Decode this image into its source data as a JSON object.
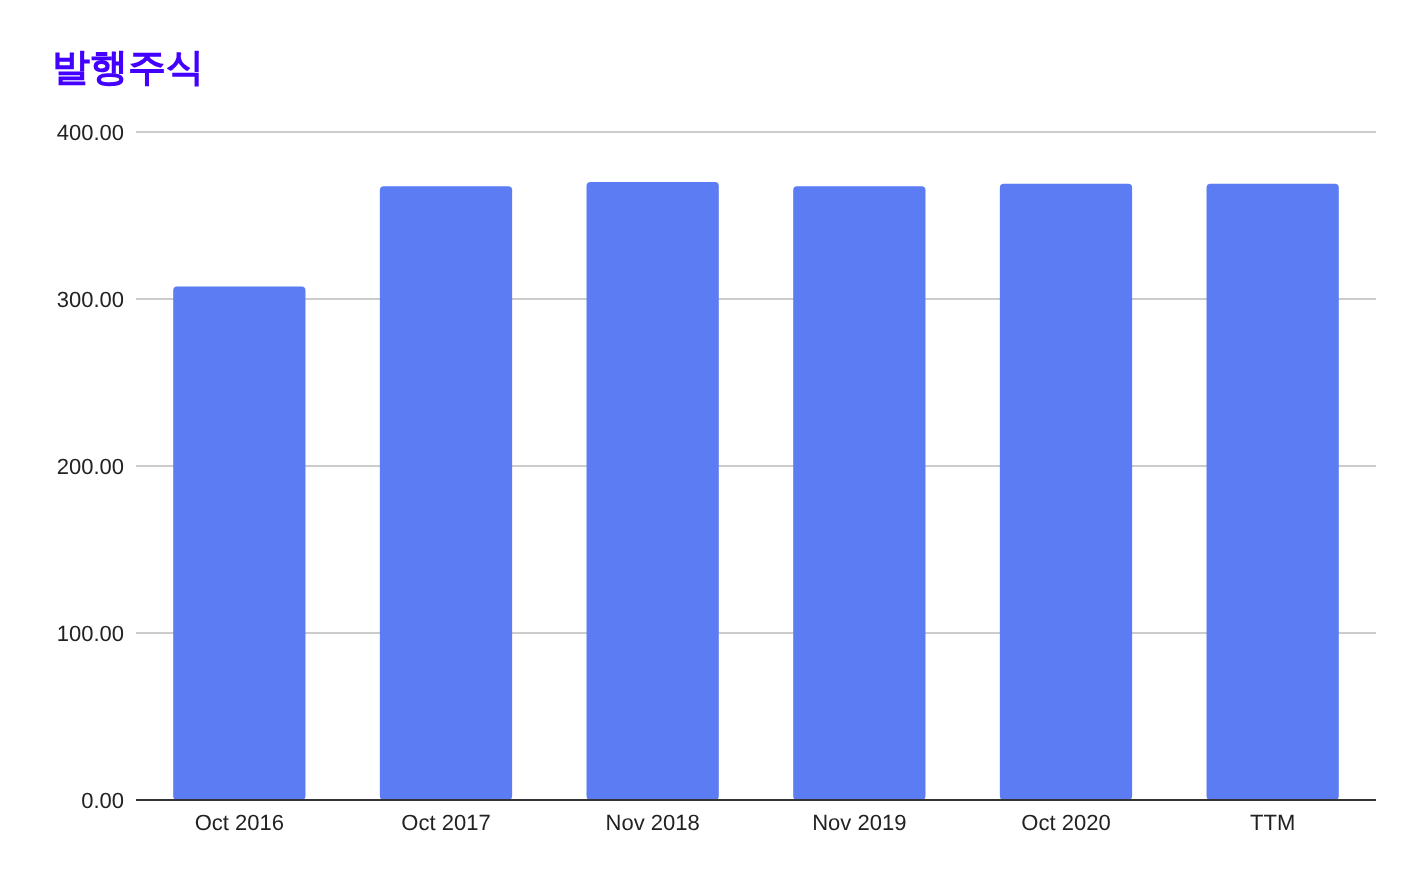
{
  "chart_data": {
    "type": "bar",
    "title": "발행주식",
    "categories": [
      "Oct 2016",
      "Oct 2017",
      "Nov 2018",
      "Nov 2019",
      "Oct 2020",
      "TTM"
    ],
    "values": [
      307.5,
      367.5,
      370,
      367.5,
      369,
      369
    ],
    "color": "#5b7cf2",
    "ylim": [
      0,
      400
    ],
    "yticks": [
      {
        "value": 0,
        "label": "0.00"
      },
      {
        "value": 100,
        "label": "100.00"
      },
      {
        "value": 200,
        "label": "200.00"
      },
      {
        "value": 300,
        "label": "300.00"
      },
      {
        "value": 400,
        "label": "400.00"
      }
    ],
    "grid": "y"
  }
}
